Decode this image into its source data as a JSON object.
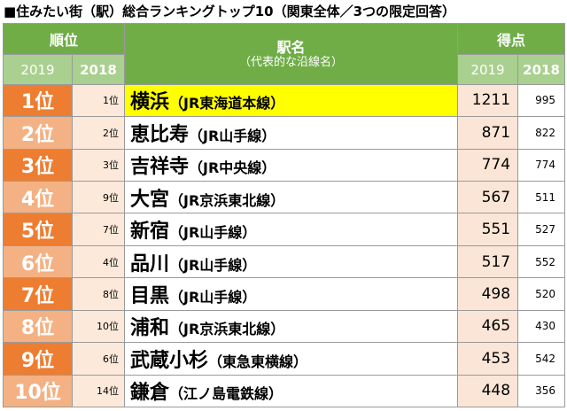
{
  "title": "■住みたい街（駅）総合ランキングトップ10（関東全体／3つの限定回答）",
  "header": {
    "rank": "順位",
    "station": "駅名",
    "station_sub": "（代表的な沿線名）",
    "score": "得点",
    "year_current": "2019",
    "year_previous": "2018"
  },
  "rows": [
    {
      "rank": "1位",
      "prev_rank": "1位",
      "station": "横浜",
      "line": "（JR東海道本線）",
      "score_2019": "1211",
      "score_2018": "995"
    },
    {
      "rank": "2位",
      "prev_rank": "2位",
      "station": "恵比寿",
      "line": "（JR山手線）",
      "score_2019": "871",
      "score_2018": "822"
    },
    {
      "rank": "3位",
      "prev_rank": "3位",
      "station": "吉祥寺",
      "line": "（JR中央線）",
      "score_2019": "774",
      "score_2018": "774"
    },
    {
      "rank": "4位",
      "prev_rank": "9位",
      "station": "大宮",
      "line": "（JR京浜東北線）",
      "score_2019": "567",
      "score_2018": "511"
    },
    {
      "rank": "5位",
      "prev_rank": "7位",
      "station": "新宿",
      "line": "（JR山手線）",
      "score_2019": "551",
      "score_2018": "527"
    },
    {
      "rank": "6位",
      "prev_rank": "4位",
      "station": "品川",
      "line": "（JR山手線）",
      "score_2019": "517",
      "score_2018": "552"
    },
    {
      "rank": "7位",
      "prev_rank": "8位",
      "station": "目黒",
      "line": "（JR山手線）",
      "score_2019": "498",
      "score_2018": "520"
    },
    {
      "rank": "8位",
      "prev_rank": "10位",
      "station": "浦和",
      "line": "（JR京浜東北線）",
      "score_2019": "465",
      "score_2018": "430"
    },
    {
      "rank": "9位",
      "prev_rank": "6位",
      "station": "武蔵小杉",
      "line": "（東急東横線）",
      "score_2019": "453",
      "score_2018": "542"
    },
    {
      "rank": "10位",
      "prev_rank": "14位",
      "station": "鎌倉",
      "line": "（江ノ島電鉄線）",
      "score_2019": "448",
      "score_2018": "356"
    }
  ]
}
